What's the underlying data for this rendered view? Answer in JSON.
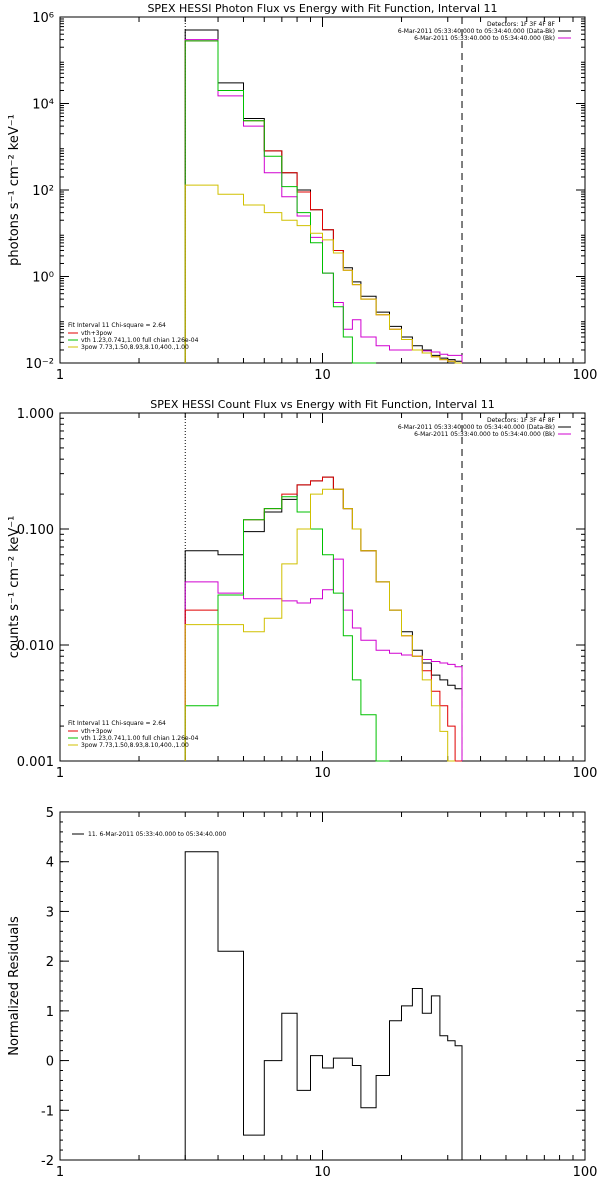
{
  "chart_data": [
    {
      "type": "line",
      "title": "SPEX HESSI Photon Flux vs Energy with Fit Function, Interval 11",
      "xlabel": "",
      "ylabel": "photons s⁻¹ cm⁻² keV⁻¹",
      "xscale": "log",
      "yscale": "log",
      "xlim": [
        1,
        100
      ],
      "ylim": [
        0.01,
        1000000
      ],
      "x_ticks": [
        1,
        10,
        100
      ],
      "x_tick_labels": [
        "1",
        "10",
        "100"
      ],
      "y_ticks": [
        0.01,
        1,
        100,
        10000,
        1000000
      ],
      "y_tick_labels": [
        "10⁻²",
        "10⁰",
        "10²",
        "10⁴",
        "10⁶"
      ],
      "info_lines": [
        "Detectors: 1F 3F 4F 8F",
        "6-Mar-2011 05:33:40.000 to 05:34:40.000 (Data-Bk)",
        "6-Mar-2011 05:33:40.000 to 05:34:40.000 (Bk)"
      ],
      "fit_caption": "Fit Interval 11    Chi-square = 2.64",
      "fit_legend": [
        {
          "label": "vth+3pow",
          "color": "#e00000"
        },
        {
          "label": "vth 1.23,0.741,1.00  full chian 1.26e-04",
          "color": "#00c000"
        },
        {
          "label": "3pow 7.73,1.50,8.93,8.10,400.,1.00",
          "color": "#d0c000"
        }
      ],
      "energy_edges": [
        3,
        4,
        5,
        6,
        7,
        8,
        9,
        10,
        11,
        12,
        13,
        14,
        16,
        18,
        20,
        22,
        24,
        26,
        28,
        30,
        32,
        34
      ],
      "series": [
        {
          "name": "6-Mar-2011 05:33:40.000 to 05:34:40.000 (Data-Bk)",
          "color": "#000000",
          "values": [
            500000,
            30000,
            4500,
            800,
            250,
            100,
            35,
            12,
            4,
            1.6,
            0.75,
            0.35,
            0.15,
            0.07,
            0.04,
            0.025,
            0.02,
            0.015,
            0.013,
            0.012,
            0.011
          ]
        },
        {
          "name": "6-Mar-2011 05:33:40.000 to 05:34:40.000 (Bk)",
          "color": "#d000d0",
          "values": [
            300000,
            15000,
            3000,
            250,
            70,
            25,
            8,
            1.2,
            0.25,
            0.06,
            0.1,
            0.04,
            0.025,
            0.02,
            0.02,
            0.02,
            0.019,
            0.018,
            0.016,
            0.015,
            0.015
          ]
        },
        {
          "name": "vth+3pow",
          "color": "#e00000",
          "values": [
            280000,
            20000,
            4000,
            800,
            250,
            90,
            35,
            12,
            4,
            1.4,
            0.65,
            0.3,
            0.13,
            0.06,
            0.035,
            0.02,
            0.017,
            0.014,
            0.012,
            0.011,
            0.01
          ]
        },
        {
          "name": "vth",
          "color": "#00c000",
          "values": [
            280000,
            20000,
            4000,
            600,
            120,
            30,
            6,
            1.2,
            0.2,
            0.04,
            0.007,
            0.0012
          ]
        },
        {
          "name": "3pow",
          "color": "#d0c000",
          "values": [
            130,
            80,
            45,
            30,
            20,
            15,
            10,
            7,
            3.5,
            1.4,
            0.65,
            0.3,
            0.13,
            0.06,
            0.035,
            0.02,
            0.017,
            0.014,
            0.012,
            0.011,
            0.01
          ]
        }
      ],
      "vlines": [
        3,
        34
      ]
    },
    {
      "type": "line",
      "title": "SPEX HESSI Count Flux vs Energy with Fit Function, Interval 11",
      "xlabel": "",
      "ylabel": "counts s⁻¹ cm⁻² keV⁻¹",
      "xscale": "log",
      "yscale": "log",
      "xlim": [
        1,
        100
      ],
      "ylim": [
        0.001,
        1
      ],
      "x_ticks": [
        1,
        10,
        100
      ],
      "x_tick_labels": [
        "1",
        "10",
        "100"
      ],
      "y_ticks": [
        0.001,
        0.01,
        0.1,
        1
      ],
      "y_tick_labels": [
        "0.001",
        "0.010",
        "0.100",
        "1.000"
      ],
      "info_lines": [
        "Detectors: 1F 3F 4F 8F",
        "6-Mar-2011 05:33:40.000 to 05:34:40.000 (Data-Bk)",
        "6-Mar-2011 05:33:40.000 to 05:34:40.000 (Bk)"
      ],
      "fit_caption": "Fit Interval 11    Chi-square = 2.64",
      "fit_legend": [
        {
          "label": "vth+3pow",
          "color": "#e00000"
        },
        {
          "label": "vth 1.23,0.741,1.00  full chian 1.26e-04",
          "color": "#00c000"
        },
        {
          "label": "3pow 7.73,1.50,8.93,8.10,400.,1.00",
          "color": "#d0c000"
        }
      ],
      "energy_edges": [
        3,
        4,
        5,
        6,
        7,
        8,
        9,
        10,
        11,
        12,
        13,
        14,
        16,
        18,
        20,
        22,
        24,
        26,
        28,
        30,
        32,
        34
      ],
      "series": [
        {
          "name": "6-Mar-2011 05:33:40.000 to 05:34:40.000 (Data-Bk)",
          "color": "#000000",
          "values": [
            0.065,
            0.06,
            0.095,
            0.14,
            0.18,
            0.24,
            0.26,
            0.28,
            0.22,
            0.15,
            0.1,
            0.065,
            0.035,
            0.02,
            0.013,
            0.009,
            0.007,
            0.0055,
            0.005,
            0.0045,
            0.0042
          ]
        },
        {
          "name": "6-Mar-2011 05:33:40.000 to 05:34:40.000 (Bk)",
          "color": "#d000d0",
          "values": [
            0.035,
            0.028,
            0.025,
            0.025,
            0.024,
            0.023,
            0.025,
            0.03,
            0.055,
            0.02,
            0.014,
            0.011,
            0.009,
            0.0085,
            0.0082,
            0.008,
            0.0075,
            0.0072,
            0.007,
            0.0068,
            0.0065
          ]
        },
        {
          "name": "vth+3pow",
          "color": "#e00000",
          "values": [
            0.02,
            0.027,
            0.12,
            0.15,
            0.2,
            0.24,
            0.26,
            0.28,
            0.22,
            0.15,
            0.1,
            0.065,
            0.035,
            0.02,
            0.012,
            0.008,
            0.006,
            0.004,
            0.003,
            0.002,
            0.001
          ]
        },
        {
          "name": "vth",
          "color": "#00c000",
          "values": [
            0.003,
            0.027,
            0.12,
            0.15,
            0.19,
            0.14,
            0.1,
            0.06,
            0.028,
            0.012,
            0.005,
            0.0025,
            0.001
          ]
        },
        {
          "name": "3pow",
          "color": "#d0c000",
          "values": [
            0.015,
            0.015,
            0.013,
            0.017,
            0.05,
            0.1,
            0.2,
            0.22,
            0.22,
            0.15,
            0.1,
            0.065,
            0.035,
            0.02,
            0.012,
            0.008,
            0.005,
            0.003,
            0.0018,
            0.001
          ]
        }
      ],
      "vlines": [
        3,
        34
      ]
    },
    {
      "type": "line",
      "title": "",
      "xlabel": "",
      "ylabel": "Normalized Residuals",
      "xscale": "log",
      "yscale": "linear",
      "xlim": [
        1,
        100
      ],
      "ylim": [
        -2,
        5
      ],
      "x_ticks": [
        1,
        10,
        100
      ],
      "x_tick_labels": [
        "1",
        "10",
        "100"
      ],
      "y_ticks": [
        -2,
        -1,
        0,
        1,
        2,
        3,
        4,
        5
      ],
      "y_tick_labels": [
        "-2",
        "-1",
        "0",
        "1",
        "2",
        "3",
        "4",
        "5"
      ],
      "legend": "11.  6-Mar-2011 05:33:40.000 to 05:34:40.000",
      "energy_edges": [
        3,
        4,
        5,
        6,
        7,
        8,
        9,
        10,
        11,
        12,
        13,
        14,
        16,
        18,
        20,
        22,
        24,
        26,
        28,
        30,
        32,
        34
      ],
      "series": [
        {
          "name": "11.  6-Mar-2011 05:33:40.000 to 05:34:40.000",
          "color": "#000000",
          "values": [
            4.2,
            2.2,
            -1.5,
            0,
            0.95,
            -0.6,
            0.1,
            -0.15,
            0.05,
            0.05,
            -0.1,
            -0.95,
            -0.3,
            0.8,
            1.1,
            1.45,
            0.95,
            1.3,
            0.5,
            0.4,
            0.3
          ]
        }
      ]
    }
  ]
}
